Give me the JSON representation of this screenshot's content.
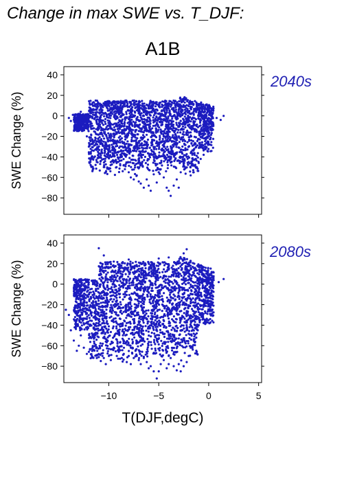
{
  "page": {
    "title": "Change in max SWE vs. T_DJF:",
    "scenario": "A1B"
  },
  "chart_data": [
    {
      "type": "scatter",
      "period": "2040s",
      "ylabel": "SWE Change (%)",
      "xlabel": "",
      "xlim": [
        -14.5,
        5.3
      ],
      "ylim": [
        -96,
        48
      ],
      "yticks": [
        40,
        20,
        0,
        -20,
        -40,
        -60,
        -80
      ],
      "ytick_labels": [
        "40",
        "20",
        "0",
        "−20",
        "−40",
        "−60",
        "−80"
      ],
      "xticks": [
        -10,
        -5,
        0,
        5
      ],
      "xtick_labels": [],
      "series_color": "#1c1cbf",
      "points": [
        [
          -14,
          -2
        ],
        [
          -13.8,
          -5
        ],
        [
          -13.6,
          1
        ],
        [
          -13.2,
          -3
        ],
        [
          -12.8,
          4
        ],
        [
          -12.5,
          -8
        ],
        [
          -12.2,
          -20
        ],
        [
          -12.0,
          -30
        ],
        [
          -11.8,
          -37
        ],
        [
          -11.5,
          6
        ],
        [
          -11.2,
          -18
        ],
        [
          -11.0,
          -40
        ],
        [
          -10.8,
          -44
        ],
        [
          -10.5,
          -50
        ],
        [
          -10.3,
          -55
        ],
        [
          -10.0,
          -52
        ],
        [
          -9.8,
          -45
        ],
        [
          -9.5,
          10
        ],
        [
          -9.2,
          -25
        ],
        [
          -9.0,
          -35
        ],
        [
          -8.7,
          -40
        ],
        [
          -8.5,
          -48
        ],
        [
          -8.2,
          -38
        ],
        [
          -8.0,
          -55
        ],
        [
          -7.8,
          -60
        ],
        [
          -7.5,
          -62
        ],
        [
          -7.2,
          -58
        ],
        [
          -7.0,
          -64
        ],
        [
          -6.8,
          -66
        ],
        [
          -6.5,
          -70
        ],
        [
          -6.2,
          -62
        ],
        [
          -6.0,
          -68
        ],
        [
          -5.8,
          -73
        ],
        [
          -5.5,
          -57
        ],
        [
          -5.2,
          -65
        ],
        [
          -5.0,
          -55
        ],
        [
          -4.8,
          -52
        ],
        [
          -4.5,
          -60
        ],
        [
          -4.2,
          -70
        ],
        [
          -4.0,
          -73
        ],
        [
          -3.8,
          -78
        ],
        [
          -3.5,
          -68
        ],
        [
          -3.2,
          -62
        ],
        [
          -3.0,
          -70
        ],
        [
          -2.8,
          -55
        ],
        [
          -2.5,
          -48
        ],
        [
          -2.2,
          -40
        ],
        [
          -2.0,
          -45
        ],
        [
          -1.8,
          -58
        ],
        [
          -1.5,
          -55
        ],
        [
          -1.2,
          -50
        ],
        [
          -1.0,
          -46
        ],
        [
          -0.8,
          -42
        ],
        [
          -0.5,
          -38
        ],
        [
          -0.3,
          -30
        ],
        [
          -0.1,
          -25
        ],
        [
          0.3,
          -10
        ],
        [
          0.8,
          -2
        ],
        [
          1.2,
          -4
        ],
        [
          1.5,
          0
        ]
      ]
    },
    {
      "type": "scatter",
      "period": "2080s",
      "ylabel": "SWE Change (%)",
      "xlabel": "T(DJF,degC)",
      "xlim": [
        -14.5,
        5.3
      ],
      "ylim": [
        -96,
        48
      ],
      "yticks": [
        40,
        20,
        0,
        -20,
        -40,
        -60,
        -80
      ],
      "ytick_labels": [
        "40",
        "20",
        "0",
        "−20",
        "−40",
        "−60",
        "−80"
      ],
      "xticks": [
        -10,
        -5,
        0,
        5
      ],
      "xtick_labels": [
        "−10",
        "−5",
        "0",
        "5"
      ],
      "series_color": "#1c1cbf",
      "points": [
        [
          -14.3,
          -25
        ],
        [
          -14.0,
          -30
        ],
        [
          -13.8,
          -45
        ],
        [
          -13.5,
          -55
        ],
        [
          -13.2,
          -65
        ],
        [
          -13.0,
          -60
        ],
        [
          -12.8,
          -50
        ],
        [
          -12.5,
          -62
        ],
        [
          -12.2,
          -68
        ],
        [
          -12.0,
          -66
        ],
        [
          -11.7,
          -70
        ],
        [
          -11.5,
          -64
        ],
        [
          -11.2,
          -72
        ],
        [
          -11.0,
          -68
        ],
        [
          -10.8,
          -75
        ],
        [
          -10.5,
          -72
        ],
        [
          -10.3,
          -78
        ],
        [
          -10.0,
          -70
        ],
        [
          -9.8,
          -74
        ],
        [
          -9.5,
          -62
        ],
        [
          -9.2,
          -70
        ],
        [
          -9.0,
          -66
        ],
        [
          -8.7,
          -72
        ],
        [
          -8.5,
          -68
        ],
        [
          -8.2,
          -76
        ],
        [
          -8.0,
          -70
        ],
        [
          -7.8,
          -78
        ],
        [
          -7.5,
          -72
        ],
        [
          -7.2,
          -70
        ],
        [
          -7.0,
          -74
        ],
        [
          -6.8,
          -78
        ],
        [
          -6.5,
          -72
        ],
        [
          -6.2,
          -76
        ],
        [
          -6.0,
          -82
        ],
        [
          -5.8,
          -80
        ],
        [
          -5.5,
          -85
        ],
        [
          -5.2,
          -92
        ],
        [
          -5.0,
          -85
        ],
        [
          -4.8,
          -78
        ],
        [
          -4.5,
          -74
        ],
        [
          -4.2,
          -82
        ],
        [
          -4.0,
          -78
        ],
        [
          -3.8,
          -72
        ],
        [
          -3.5,
          -80
        ],
        [
          -3.2,
          -84
        ],
        [
          -3.0,
          -78
        ],
        [
          -2.8,
          -85
        ],
        [
          -2.5,
          -80
        ],
        [
          -2.2,
          -76
        ],
        [
          -2.0,
          -70
        ],
        [
          -1.8,
          -62
        ],
        [
          -1.5,
          -55
        ],
        [
          -1.2,
          -48
        ],
        [
          -1.0,
          -40
        ],
        [
          -0.8,
          -30
        ],
        [
          -0.5,
          -15
        ],
        [
          0.0,
          5
        ],
        [
          0.5,
          4
        ],
        [
          1.0,
          2
        ],
        [
          1.5,
          5
        ],
        [
          -11.0,
          35
        ],
        [
          -10.5,
          28
        ],
        [
          -9.5,
          22
        ],
        [
          -8.0,
          24
        ],
        [
          -5.0,
          25
        ],
        [
          -4.0,
          26
        ],
        [
          -2.5,
          30
        ],
        [
          -2.2,
          34
        ]
      ]
    }
  ],
  "colors": {
    "series": "#1c1cbf",
    "period_label": "#1f1fb3"
  }
}
